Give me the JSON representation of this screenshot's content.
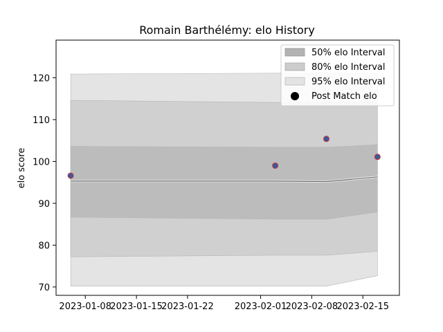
{
  "chart_data": {
    "type": "line",
    "title": "Romain Barthélémy: elo History",
    "xlabel": "",
    "ylabel": "elo score",
    "x_axis": "date",
    "xlim": [
      "2023-01-04",
      "2023-02-20"
    ],
    "ylim": [
      68,
      129
    ],
    "x_ticks": [
      "2023-01-08",
      "2023-01-15",
      "2023-01-22",
      "2023-02-01",
      "2023-02-08",
      "2023-02-15"
    ],
    "y_ticks": [
      70,
      80,
      90,
      100,
      110,
      120
    ],
    "grid": false,
    "legend_placement": "top-right",
    "legend": [
      {
        "label": "50% elo Interval",
        "kind": "patch",
        "color": "#b3b3b3"
      },
      {
        "label": "80% elo Interval",
        "kind": "patch",
        "color": "#cccccc"
      },
      {
        "label": "95% elo Interval",
        "kind": "patch",
        "color": "#e3e3e3"
      },
      {
        "label": "Post Match elo",
        "kind": "marker",
        "color": "#000000"
      }
    ],
    "dates": [
      "2023-01-06",
      "2023-02-03",
      "2023-02-10",
      "2023-02-17"
    ],
    "mean": [
      95.3,
      95.3,
      95.2,
      96.3
    ],
    "band_50": {
      "upper": [
        103.6,
        103.4,
        103.4,
        104.0
      ],
      "lower": [
        86.7,
        86.2,
        86.2,
        87.9
      ],
      "color": "#bcbcbc"
    },
    "band_80": {
      "upper": [
        114.6,
        114.1,
        114.1,
        114.1
      ],
      "lower": [
        77.2,
        77.6,
        77.6,
        78.5
      ],
      "color": "#d0d0d0"
    },
    "band_95": {
      "upper": [
        120.9,
        121.1,
        121.1,
        121.1
      ],
      "lower": [
        70.2,
        70.2,
        70.2,
        72.7
      ],
      "color": "#e4e4e4"
    },
    "points": [
      {
        "x": "2023-01-06",
        "y": 96.6
      },
      {
        "x": "2023-02-03",
        "y": 99.0
      },
      {
        "x": "2023-02-10",
        "y": 105.4
      },
      {
        "x": "2023-02-17",
        "y": 101.1
      }
    ],
    "point_fill": "#3a5a9a",
    "point_edge": "#cc3333",
    "line_color": "#666666"
  }
}
